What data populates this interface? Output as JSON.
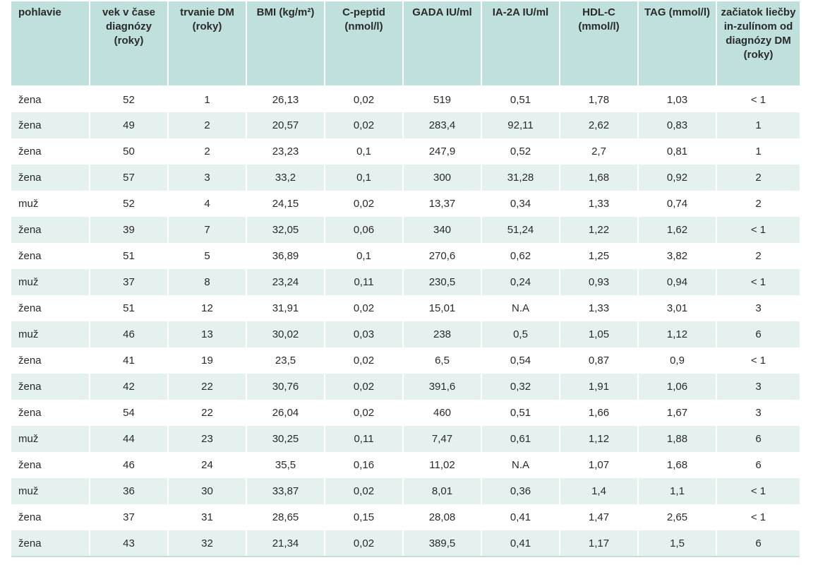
{
  "table": {
    "headers": [
      "pohlavie",
      "vek v čase diagnózy (roky)",
      "trvanie DM (roky)",
      "BMI (kg/m²)",
      "C-peptid (nmol/l)",
      "GADA IU/ml",
      "IA-2A IU/ml",
      "HDL-C (mmol/l)",
      "TAG (mmol/l)",
      "začiatok liečby in-zulínom od diagnózy DM (roky)"
    ],
    "rows": [
      [
        "žena",
        "52",
        "1",
        "26,13",
        "0,02",
        "519",
        "0,51",
        "1,78",
        "1,03",
        "< 1"
      ],
      [
        "žena",
        "49",
        "2",
        "20,57",
        "0,02",
        "283,4",
        "92,11",
        "2,62",
        "0,83",
        "1"
      ],
      [
        "žena",
        "50",
        "2",
        "23,23",
        "0,1",
        "247,9",
        "0,52",
        "2,7",
        "0,81",
        "1"
      ],
      [
        "žena",
        "57",
        "3",
        "33,2",
        "0,1",
        "300",
        "31,28",
        "1,68",
        "0,92",
        "2"
      ],
      [
        "muž",
        "52",
        "4",
        "24,15",
        "0,02",
        "13,37",
        "0,34",
        "1,33",
        "0,74",
        "2"
      ],
      [
        "žena",
        "39",
        "7",
        "32,05",
        "0,06",
        "340",
        "51,24",
        "1,22",
        "1,62",
        "< 1"
      ],
      [
        "žena",
        "51",
        "5",
        "36,89",
        "0,1",
        "270,6",
        "0,62",
        "1,25",
        "3,82",
        "2"
      ],
      [
        "muž",
        "37",
        "8",
        "23,24",
        "0,11",
        "230,5",
        "0,24",
        "0,93",
        "0,94",
        "< 1"
      ],
      [
        "žena",
        "51",
        "12",
        "31,91",
        "0,02",
        "15,01",
        "N.A",
        "1,33",
        "3,01",
        "3"
      ],
      [
        "muž",
        "46",
        "13",
        "30,02",
        "0,03",
        "238",
        "0,5",
        "1,05",
        "1,12",
        "6"
      ],
      [
        "žena",
        "41",
        "19",
        "23,5",
        "0,02",
        "6,5",
        "0,54",
        "0,87",
        "0,9",
        "< 1"
      ],
      [
        "žena",
        "42",
        "22",
        "30,76",
        "0,02",
        "391,6",
        "0,32",
        "1,91",
        "1,06",
        "3"
      ],
      [
        "žena",
        "54",
        "22",
        "26,04",
        "0,02",
        "460",
        "0,51",
        "1,66",
        "1,67",
        "3"
      ],
      [
        "muž",
        "44",
        "23",
        "30,25",
        "0,11",
        "7,47",
        "0,61",
        "1,12",
        "1,88",
        "6"
      ],
      [
        "žena",
        "46",
        "24",
        "35,5",
        "0,16",
        "11,02",
        "N.A",
        "1,07",
        "1,68",
        "6"
      ],
      [
        "muž",
        "36",
        "30",
        "33,87",
        "0,02",
        "8,01",
        "0,36",
        "1,4",
        "1,1",
        "< 1"
      ],
      [
        "žena",
        "37",
        "31",
        "28,65",
        "0,15",
        "28,08",
        "0,41",
        "1,47",
        "2,65",
        "< 1"
      ],
      [
        "žena",
        "43",
        "32",
        "21,34",
        "0,02",
        "389,5",
        "0,41",
        "1,17",
        "1,5",
        "6"
      ]
    ]
  },
  "colors": {
    "header_bg": "#bfe0dc",
    "stripe_bg": "#e4f1ef",
    "row_bg": "#ffffff",
    "text": "#2a2a2a"
  }
}
